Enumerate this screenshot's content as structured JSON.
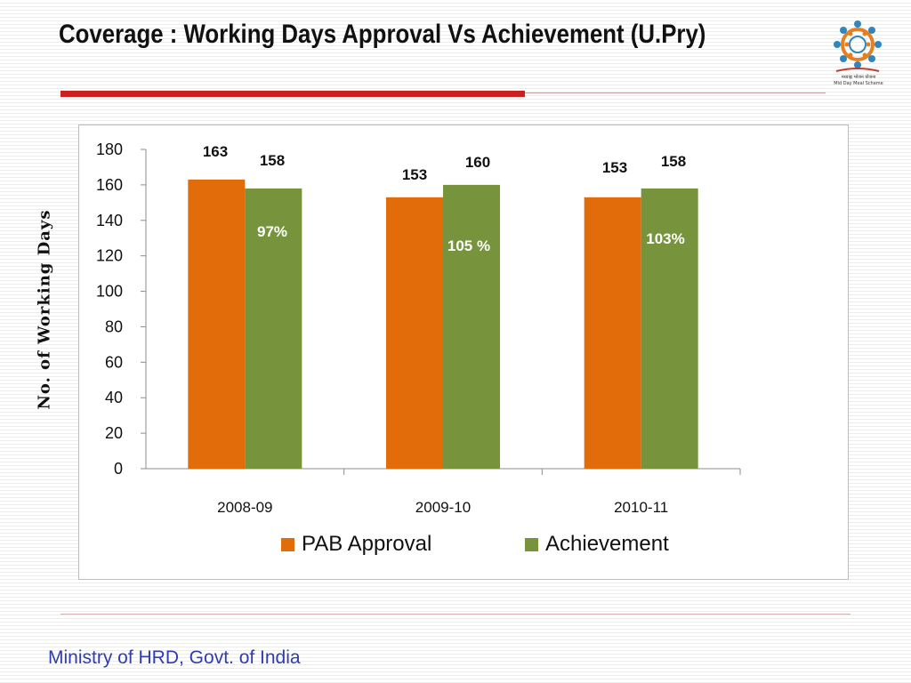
{
  "slide": {
    "title": "Coverage : Working Days Approval Vs Achievement (U.Pry)",
    "footer": "Ministry of HRD, Govt. of India",
    "logo_caption": "मध्याह्न भोजन योजना\nMid Day Meal Scheme"
  },
  "colors": {
    "pab_approval": "#e36c0a",
    "achievement": "#77933c",
    "title_bar": "#cc1f1f",
    "footer_text": "#2f3cb3"
  },
  "chart_data": {
    "type": "bar",
    "categories": [
      "2008-09",
      "2009-10",
      "2010-11"
    ],
    "series": [
      {
        "name": "PAB Approval",
        "values": [
          163,
          153,
          153
        ],
        "labels": [
          "163",
          "153",
          "153"
        ]
      },
      {
        "name": "Achievement",
        "values": [
          158,
          160,
          158
        ],
        "labels": [
          "158",
          "160",
          "158"
        ]
      }
    ],
    "percent_labels": [
      "97%",
      "105 %",
      "103%"
    ],
    "xlabel": "",
    "ylabel": "No. of Working Days",
    "ylim": [
      0,
      180
    ],
    "yticks": [
      0,
      20,
      40,
      60,
      80,
      100,
      120,
      140,
      160,
      180
    ],
    "grid": false,
    "legend_position": "bottom"
  }
}
